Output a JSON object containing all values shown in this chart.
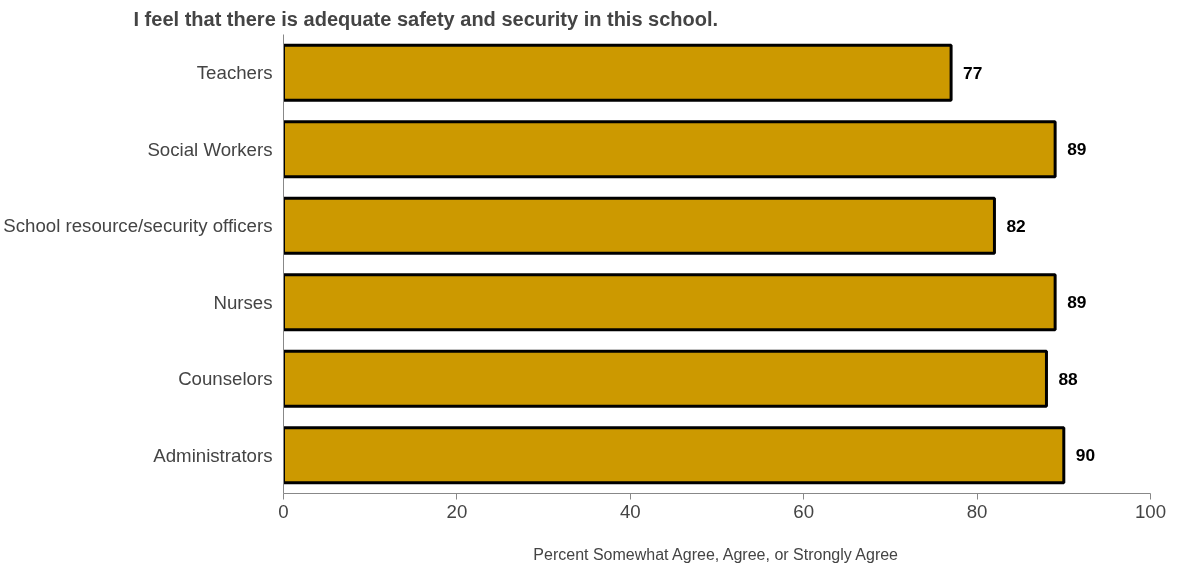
{
  "chart_data": {
    "type": "bar",
    "orientation": "horizontal",
    "title": "I feel that there is adequate safety and security in this school.",
    "xlabel": "Percent Somewhat Agree, Agree, or Strongly Agree",
    "categories": [
      "Teachers",
      "Social Workers",
      "School resource/security officers",
      "Nurses",
      "Counselors",
      "Administrators"
    ],
    "values": [
      77,
      89,
      82,
      89,
      88,
      90
    ],
    "color": "#cc9900",
    "xlim": [
      0,
      100
    ],
    "xticks": [
      0,
      20,
      40,
      60,
      80,
      100
    ],
    "grid": false,
    "data_labels": true
  }
}
